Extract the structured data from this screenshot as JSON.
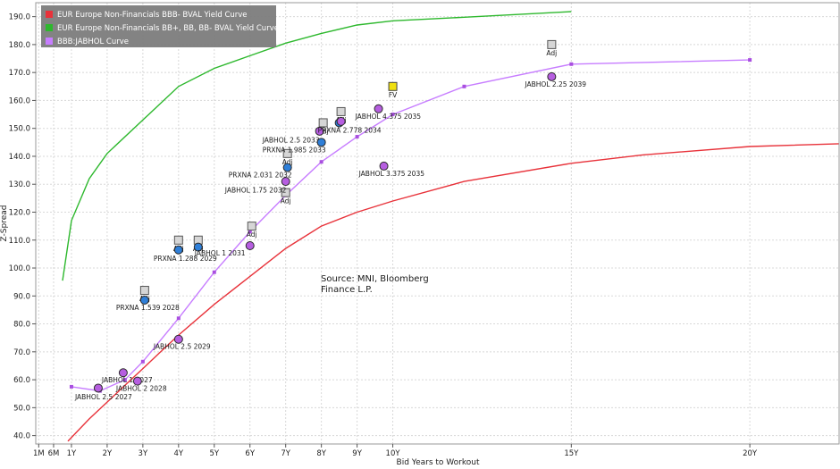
{
  "chart_data": {
    "type": "scatter",
    "ylabel": "Z-Spread",
    "xlabel": "Bid Years to Workout",
    "ylim": [
      37,
      195
    ],
    "xlim": [
      0,
      22.5
    ],
    "yticks": [
      "40.0",
      "50.0",
      "60.0",
      "70.0",
      "80.0",
      "90.0",
      "100.0",
      "110.0",
      "120.0",
      "130.0",
      "140.0",
      "150.0",
      "160.0",
      "170.0",
      "180.0",
      "190.0"
    ],
    "xticks": [
      {
        "label": "1M",
        "x": 0.083
      },
      {
        "label": "6M",
        "x": 0.5
      },
      {
        "label": "1Y",
        "x": 1
      },
      {
        "label": "2Y",
        "x": 2
      },
      {
        "label": "3Y",
        "x": 3
      },
      {
        "label": "4Y",
        "x": 4
      },
      {
        "label": "5Y",
        "x": 5
      },
      {
        "label": "6Y",
        "x": 6
      },
      {
        "label": "7Y",
        "x": 7
      },
      {
        "label": "8Y",
        "x": 8
      },
      {
        "label": "9Y",
        "x": 9
      },
      {
        "label": "10Y",
        "x": 10
      },
      {
        "label": "15Y",
        "x": 15
      },
      {
        "label": "20Y",
        "x": 20
      }
    ],
    "source_note": [
      "Source: MNI, Bloomberg",
      "Finance L.P."
    ],
    "legend": [
      {
        "label": "EUR Europe Non-Financials BBB- BVAL Yield Curve",
        "color": "#e8323a"
      },
      {
        "label": "EUR Europe Non-Financials BB+, BB, BB- BVAL Yield Curve",
        "color": "#2db82d"
      },
      {
        "label": "BBB:JABHOL Curve",
        "color": "#c77dff"
      }
    ],
    "series": [
      {
        "name": "EUR Europe Non-Financials BBB- BVAL Yield Curve",
        "color": "#e8323a",
        "kind": "line",
        "x": [
          0.9,
          1.5,
          2,
          2.5,
          3,
          3.5,
          4,
          5,
          6,
          7,
          8,
          9,
          10,
          12,
          15,
          17,
          20,
          22.5
        ],
        "y": [
          38,
          46,
          52,
          58,
          64,
          70,
          76,
          87,
          97,
          107,
          115,
          120,
          124,
          131,
          137.5,
          140.5,
          143.5,
          144.5
        ]
      },
      {
        "name": "EUR Europe Non-Financials BB+, BB, BB- BVAL Yield Curve",
        "color": "#2db82d",
        "kind": "line",
        "x": [
          0.75,
          1,
          1.5,
          2,
          3,
          4,
          5,
          6,
          7,
          8,
          9,
          10,
          12,
          15
        ],
        "y": [
          95.5,
          117,
          132,
          141,
          153,
          165,
          171.5,
          176,
          180.5,
          184,
          187,
          188.5,
          189.8,
          191.8
        ]
      },
      {
        "name": "BBB:JABHOL Curve",
        "color": "#c77dff",
        "kind": "line-markers",
        "x": [
          1,
          1.8,
          2.5,
          3,
          4,
          5,
          6,
          7,
          8,
          9,
          10,
          12,
          15,
          20
        ],
        "y": [
          57.5,
          56,
          60,
          66.5,
          82,
          98.5,
          113,
          126,
          138,
          147,
          155,
          165,
          173,
          174.5
        ]
      }
    ],
    "bonds": [
      {
        "label": "JABHOL 2.5 2027",
        "x": 1.75,
        "y": 57,
        "color": "#b65ee0",
        "lx": 1.1,
        "ly": 53
      },
      {
        "label": "JABHOL 1 2027",
        "x": 2.45,
        "y": 62.5,
        "color": "#b65ee0",
        "lx": 1.85,
        "ly": 59
      },
      {
        "label": "JABHOL 2 2028",
        "x": 2.85,
        "y": 59.5,
        "color": "#b65ee0",
        "lx": 2.25,
        "ly": 56
      },
      {
        "label": "JABHOL 2.5 2029",
        "x": 4,
        "y": 74.5,
        "color": "#b65ee0",
        "lx": 3.3,
        "ly": 71
      },
      {
        "label": "PRXNA 1.539 2028",
        "x": 3.05,
        "y": 88.5,
        "color": "#2f7fd8",
        "lx": 2.25,
        "ly": 85
      },
      {
        "label": "PRXNA 1.288 2029",
        "x": 4,
        "y": 106.5,
        "color": "#2f7fd8",
        "lx": 3.3,
        "ly": 102.5
      },
      {
        "label": "",
        "x": 4.55,
        "y": 107.5,
        "color": "#2f7fd8"
      },
      {
        "label": "JABHOL 1 2031",
        "x": 6,
        "y": 108,
        "color": "#b65ee0",
        "lx": 4.45,
        "ly": 104.5
      },
      {
        "label": "PRXNA 2.031 2032",
        "x": 7.05,
        "y": 136,
        "color": "#2f7fd8",
        "lx": 5.4,
        "ly": 132.5
      },
      {
        "label": "JABHOL 1.75 2032",
        "x": 7,
        "y": 131,
        "color": "#b65ee0",
        "lx": 5.3,
        "ly": 127
      },
      {
        "label": "JABHOL 2.5 2033",
        "x": 7.95,
        "y": 149,
        "color": "#b65ee0",
        "lx": 6.35,
        "ly": 145
      },
      {
        "label": "PRXNA 1.985 2033",
        "x": 8,
        "y": 145,
        "color": "#2f7fd8",
        "lx": 6.35,
        "ly": 141.5
      },
      {
        "label": "PRXNA 2.778 2034",
        "x": 8.5,
        "y": 152,
        "color": "#2f7fd8",
        "lx": 7.9,
        "ly": 148.5
      },
      {
        "label": "",
        "x": 8.55,
        "y": 152.5,
        "color": "#b65ee0"
      },
      {
        "label": "JABHOL 4.375 2035",
        "x": 9.6,
        "y": 157,
        "color": "#b65ee0",
        "lx": 8.95,
        "ly": 153.5
      },
      {
        "label": "JABHOL 3.375 2035",
        "x": 9.75,
        "y": 136.5,
        "color": "#b65ee0",
        "lx": 9.05,
        "ly": 133
      },
      {
        "label": "JABHOL 2.25 2039",
        "x": 14.45,
        "y": 168.5,
        "color": "#b65ee0",
        "lx": 13.7,
        "ly": 165
      }
    ],
    "adj_points": [
      {
        "label": "Adj",
        "x": 3.05,
        "y": 92
      },
      {
        "label": "Adj",
        "x": 4,
        "y": 110
      },
      {
        "label": "Adj",
        "x": 4.55,
        "y": 110
      },
      {
        "label": "Adj",
        "x": 6.05,
        "y": 115
      },
      {
        "label": "Adj",
        "x": 7.05,
        "y": 141
      },
      {
        "label": "Adj",
        "x": 7,
        "y": 127
      },
      {
        "label": "Adj",
        "x": 8.05,
        "y": 152
      },
      {
        "label": "Adj",
        "x": 8.55,
        "y": 156
      },
      {
        "label": "Adj",
        "x": 14.45,
        "y": 180
      }
    ],
    "fv_point": {
      "label": "FV",
      "x": 10,
      "y": 165,
      "color": "#f0e010"
    }
  }
}
